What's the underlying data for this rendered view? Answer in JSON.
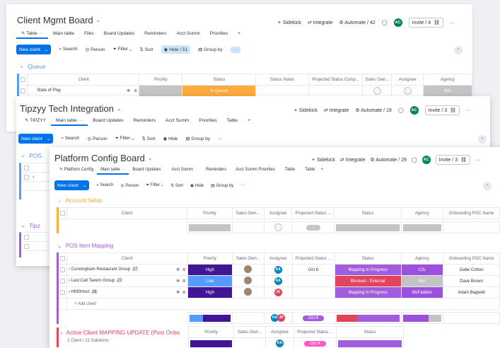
{
  "colors": {
    "primary": "#0073ea",
    "queue": "#579bfc",
    "pos": "#579bfc",
    "tipzy": "#a25ddc",
    "account_setup": "#fdab3d",
    "pos_mapping": "#a25ddc",
    "active": "#e2445c",
    "high": "#401694",
    "low": "#579bfc",
    "mapping": "#a25ddc",
    "blocked": "#e2445c",
    "queued": "#fdab3d",
    "c2l": "#9d50dd",
    "na": "#c4c4c4",
    "mcfadden": "#9d50dd"
  },
  "w1": {
    "title": "Client Mgmt Board",
    "top": {
      "sidekick": "Sidekick",
      "integrate": "Integrate",
      "automate": "Automate / 42",
      "avatar": "AC",
      "invite": "Invite / 4"
    },
    "tabs": [
      "Table",
      "Main table",
      "Files",
      "Board Updates",
      "Reminders",
      "Acct Summ",
      "Priorities",
      "+"
    ],
    "toolbar": {
      "new": "New client",
      "search": "Search",
      "person": "Person",
      "filter": "Filter",
      "sort": "Sort",
      "hide": "Hide / 51",
      "group": "Group by",
      "more": "···"
    },
    "group": "Queue",
    "headers": [
      "Client",
      "Priority",
      "Status",
      "Status Notes",
      "Projected Status Comp...",
      "Sales Own...",
      "Assignee",
      "Agency"
    ],
    "row": {
      "client": "State of Play",
      "status": "In Queue",
      "agency": "N/A"
    }
  },
  "w2": {
    "title": "Tipzyy Tech Integration",
    "top": {
      "sidekick": "Sidekick",
      "integrate": "Integrate",
      "automate": "Automate / 19",
      "avatar": "AC",
      "invite": "Invite / 3"
    },
    "tabs": [
      "TIPZYY",
      "Main table",
      "Board Updates",
      "Reminders",
      "Acct Summ",
      "Priorities",
      "Table",
      "+"
    ],
    "toolbar": {
      "new": "New client",
      "search": "Search",
      "person": "Person",
      "filter": "Filter",
      "sort": "Sort",
      "hide": "Hide",
      "group": "Group by",
      "more": "···"
    },
    "group_pos": "POS",
    "group_tipzy": "Tipz"
  },
  "w3": {
    "title": "Platform Config Board",
    "top": {
      "sidekick": "Sidekick",
      "integrate": "Integrate",
      "automate": "Automate / 29",
      "avatar": "AC",
      "invite": "Invite / 3"
    },
    "tabs": [
      "Platform Config",
      "Main table",
      "Board Updates",
      "Acct Summ",
      "Reminders",
      "Acct Summ Priorities",
      "Table",
      "Table",
      "+"
    ],
    "toolbar": {
      "new": "New client",
      "search": "Search",
      "person": "Person",
      "filter": "Filter",
      "sort": "Sort",
      "hide": "Hide",
      "group": "Group by",
      "more": "···"
    },
    "headers": [
      "Client",
      "Priority",
      "Sales Own...",
      "Assignee",
      "Projected Status ...",
      "Status",
      "Agency",
      "Onboarding POC Name"
    ],
    "account_setup": "Account Setup",
    "pos_mapping": "POS Item Mapping",
    "rows": [
      {
        "client": "Cunningham Restaurant Group",
        "count": "27",
        "priority": "High",
        "assignee": "KA",
        "date": "Oct 6",
        "status": "Mapping In Progress",
        "agency": "C2L",
        "poc": "Gabe Cotton"
      },
      {
        "client": "Last Call Tavern Group",
        "count": "27",
        "priority": "Low",
        "assignee": "KA",
        "date": "",
        "status": "Blocked - External",
        "agency": "N/A",
        "poc": "Dave Brown"
      },
      {
        "client": "HMSHost",
        "count": "28",
        "priority": "High",
        "assignee": "JK",
        "date": "",
        "status": "Mapping In Progress",
        "agency": "McFadden",
        "poc": "Adam Bagwell"
      }
    ],
    "add_client": "+ Add client",
    "summary": {
      "a1": "KA",
      "a2": "JK",
      "date": "Oct 6"
    },
    "active_group": "Active Client MAPPING UPDATE (Post Onbo",
    "active_sub": "1 Client / 21 Subitems",
    "active_headers": [
      "Priority",
      "Sales Own...",
      "Assignee",
      "Projected Status ...",
      "Status"
    ],
    "active_row": {
      "assignee": "KA",
      "date": "Oct 4"
    }
  }
}
